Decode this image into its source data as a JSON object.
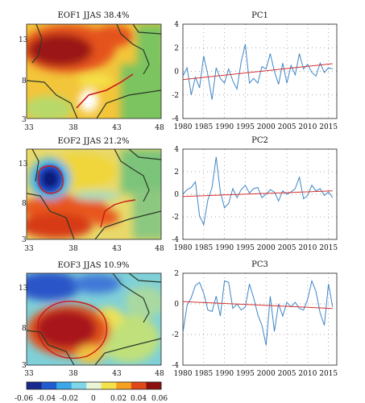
{
  "figure": {
    "colorbar": {
      "ticks": [
        "-0.06",
        "-0.04",
        "-0.02",
        "0",
        "0.02",
        "0.04",
        "0.06"
      ],
      "colors": [
        "#1a2a8c",
        "#1f5cd0",
        "#3aa7e8",
        "#7fd6e8",
        "#e8f5d8",
        "#f5e24a",
        "#f5a020",
        "#e04818",
        "#8c1010"
      ]
    },
    "maps": [
      {
        "title": "EOF1 JJAS 38.4%",
        "x_ticks": [
          "33",
          "38",
          "43",
          "48"
        ],
        "y_ticks": [
          "13",
          "8",
          "3"
        ]
      },
      {
        "title": "EOF2 JJAS 21.2%",
        "x_ticks": [
          "33",
          "38",
          "43",
          "48"
        ],
        "y_ticks": [
          "13",
          "8",
          "3"
        ]
      },
      {
        "title": "EOF3 JJAS 10.9%",
        "x_ticks": [
          "33",
          "38",
          "43",
          "48"
        ],
        "y_ticks": [
          "13",
          "8",
          "3"
        ]
      }
    ]
  },
  "chart_data": [
    {
      "type": "line",
      "title": "PC1",
      "x": [
        1980,
        1981,
        1982,
        1983,
        1984,
        1985,
        1986,
        1987,
        1988,
        1989,
        1990,
        1991,
        1992,
        1993,
        1994,
        1995,
        1996,
        1997,
        1998,
        1999,
        2000,
        2001,
        2002,
        2003,
        2004,
        2005,
        2006,
        2007,
        2008,
        2009,
        2010,
        2011,
        2012,
        2013,
        2014,
        2015,
        2016
      ],
      "series": [
        {
          "values": [
            -0.4,
            0.3,
            -2.0,
            -0.5,
            -1.4,
            1.3,
            -0.3,
            -2.4,
            0.3,
            -0.6,
            -1.0,
            0.2,
            -0.8,
            -1.5,
            0.8,
            2.3,
            -1.0,
            -0.6,
            -1.0,
            0.4,
            0.2,
            1.5,
            0.0,
            -1.1,
            0.7,
            -1.0,
            0.5,
            -0.3,
            1.5,
            0.2,
            0.6,
            -0.1,
            -0.4,
            0.7,
            -0.1,
            0.3,
            0.2
          ]
        },
        {
          "values": [
            -0.7,
            0.65
          ],
          "x": [
            1980,
            2016
          ]
        }
      ],
      "xticks": [
        "1980",
        "1985",
        "1990",
        "1995",
        "2000",
        "2005",
        "2010",
        "2015"
      ],
      "yticks": [
        "4",
        "2",
        "0",
        "-2",
        "-4"
      ],
      "xlim": [
        1980,
        2017
      ],
      "ylim": [
        -4,
        4
      ],
      "grid": "dotted"
    },
    {
      "type": "line",
      "title": "PC2",
      "x": [
        1980,
        1981,
        1982,
        1983,
        1984,
        1985,
        1986,
        1987,
        1988,
        1989,
        1990,
        1991,
        1992,
        1993,
        1994,
        1995,
        1996,
        1997,
        1998,
        1999,
        2000,
        2001,
        2002,
        2003,
        2004,
        2005,
        2006,
        2007,
        2008,
        2009,
        2010,
        2011,
        2012,
        2013,
        2014,
        2015,
        2016
      ],
      "series": [
        {
          "values": [
            0.0,
            0.4,
            0.6,
            1.1,
            -1.9,
            -2.7,
            -0.5,
            0.6,
            3.3,
            0.2,
            -1.2,
            -0.8,
            0.5,
            -0.3,
            0.4,
            0.8,
            0.1,
            0.5,
            0.6,
            -0.3,
            0.0,
            0.4,
            0.2,
            -0.6,
            0.3,
            0.0,
            0.2,
            0.5,
            1.5,
            -0.4,
            -0.1,
            0.8,
            0.3,
            0.5,
            -0.1,
            0.2,
            -0.3
          ]
        },
        {
          "values": [
            -0.2,
            0.3
          ],
          "x": [
            1980,
            2016
          ]
        }
      ],
      "xticks": [
        "1980",
        "1985",
        "1990",
        "1995",
        "2000",
        "2005",
        "2010",
        "2015"
      ],
      "yticks": [
        "4",
        "2",
        "0",
        "-2",
        "-4"
      ],
      "xlim": [
        1980,
        2017
      ],
      "ylim": [
        -4,
        4
      ],
      "grid": "dotted"
    },
    {
      "type": "line",
      "title": "PC3",
      "x": [
        1980,
        1981,
        1982,
        1983,
        1984,
        1985,
        1986,
        1987,
        1988,
        1989,
        1990,
        1991,
        1992,
        1993,
        1994,
        1995,
        1996,
        1997,
        1998,
        1999,
        2000,
        2001,
        2002,
        2003,
        2004,
        2005,
        2006,
        2007,
        2008,
        2009,
        2010,
        2011,
        2012,
        2013,
        2014,
        2015,
        2016
      ],
      "series": [
        {
          "values": [
            -1.9,
            -0.1,
            0.4,
            1.2,
            1.4,
            0.7,
            -0.4,
            -0.5,
            0.5,
            -0.8,
            1.5,
            1.4,
            -0.3,
            0.0,
            -0.4,
            -0.2,
            1.3,
            0.4,
            -0.7,
            -1.4,
            -2.7,
            0.5,
            -1.8,
            0.0,
            -0.8,
            0.1,
            -0.2,
            0.1,
            -0.3,
            -0.4,
            0.3,
            1.5,
            0.8,
            -0.6,
            -1.4,
            1.3,
            -0.2
          ]
        },
        {
          "values": [
            0.15,
            -0.3
          ],
          "x": [
            1980,
            2016
          ]
        }
      ],
      "xticks": [
        "1980",
        "1985",
        "1990",
        "1995",
        "2000",
        "2005",
        "2010",
        "2015"
      ],
      "yticks": [
        "2",
        "0",
        "-2",
        "-4"
      ],
      "xlim": [
        1980,
        2017
      ],
      "ylim": [
        -4,
        2
      ],
      "grid": "dotted"
    }
  ]
}
